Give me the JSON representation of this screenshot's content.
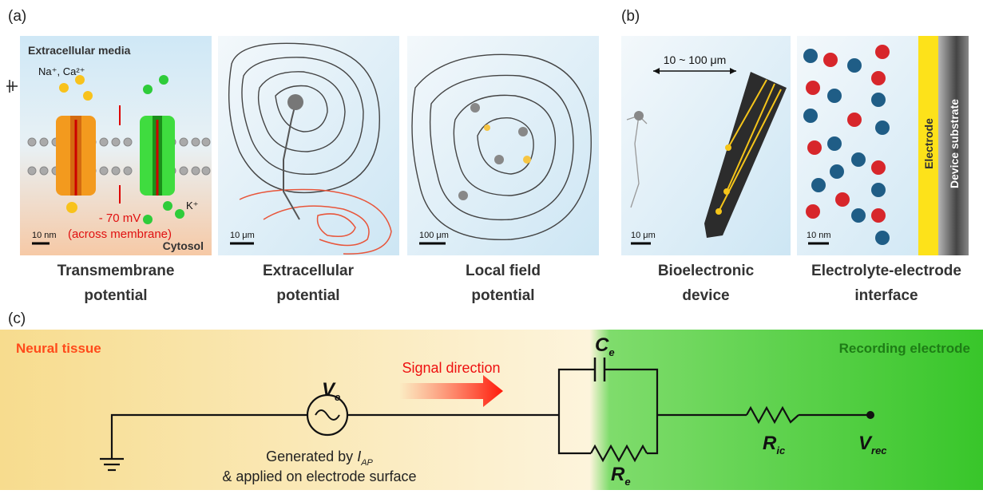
{
  "panel_a": {
    "label": "(a)",
    "tile_1": {
      "top_label": "Extracellular media",
      "ions_out": "Na⁺, Ca²⁺",
      "voltage": "- 70 mV",
      "voltage_note": "(across membrane)",
      "ion_in": "K⁺",
      "scale": "10 nm",
      "bottom_label": "Cytosol",
      "caption": [
        "Transmembrane",
        "potential"
      ]
    },
    "tile_2": {
      "scale": "10 μm",
      "caption": [
        "Extracellular",
        "potential"
      ]
    },
    "tile_3": {
      "scale": "100 μm",
      "caption": [
        "Local field",
        "potential"
      ]
    }
  },
  "panel_b": {
    "label": "(b)",
    "tile_1": {
      "distance": "10 ~ 100 μm",
      "scale": "10 μm",
      "caption": [
        "Bioelectronic",
        "device"
      ]
    },
    "tile_2": {
      "electrode": "Electrode",
      "substrate": "Device substrate",
      "scale": "10 nm",
      "caption": [
        "Electrolyte-electrode",
        "interface"
      ]
    }
  },
  "panel_c": {
    "label": "(c)",
    "left_region": "Neural tissue",
    "right_region": "Recording electrode",
    "arrow_label": "Signal direction",
    "source": {
      "symbol": "V",
      "subscript": "e"
    },
    "source_note": {
      "line_1_prefix": "Generated by ",
      "current": {
        "symbol": "I",
        "subscript": "AP"
      },
      "line_2": "& applied on electrode surface"
    },
    "capacitor": {
      "symbol": "C",
      "subscript": "e"
    },
    "resistor": {
      "symbol": "R",
      "subscript": "e"
    },
    "series_resistor": {
      "symbol": "R",
      "subscript": "ic"
    },
    "output": {
      "symbol": "V",
      "subscript": "rec"
    }
  }
}
